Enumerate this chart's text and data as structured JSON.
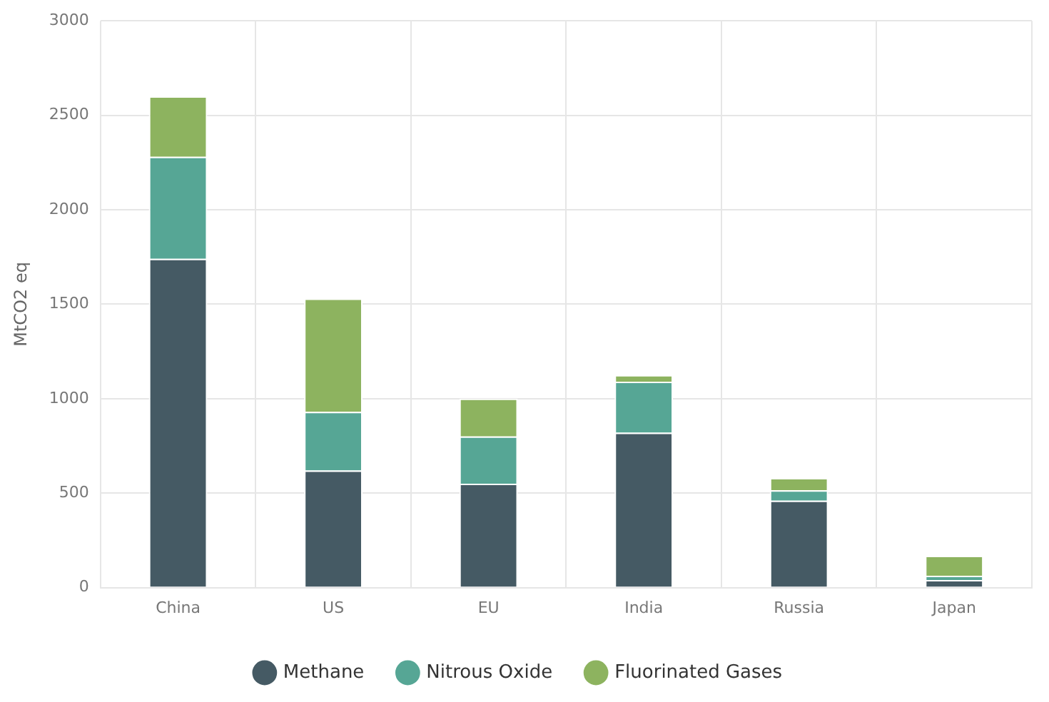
{
  "chart_data": {
    "type": "bar",
    "stacked": true,
    "ylabel": "MtCO2 eq",
    "categories": [
      "China",
      "US",
      "EU",
      "India",
      "Russia",
      "Japan"
    ],
    "series": [
      {
        "name": "Methane",
        "color": "#455a64",
        "values": [
          1740,
          620,
          550,
          820,
          460,
          40
        ]
      },
      {
        "name": "Nitrous Oxide",
        "color": "#56a695",
        "values": [
          540,
          310,
          250,
          270,
          55,
          23
        ]
      },
      {
        "name": "Fluorinated Gases",
        "color": "#8db35f",
        "values": [
          320,
          600,
          200,
          35,
          65,
          105
        ]
      }
    ],
    "ylim": [
      0,
      3000
    ],
    "yticks": [
      0,
      500,
      1000,
      1500,
      2000,
      2500,
      3000
    ],
    "grid": true,
    "legend": "bottom"
  }
}
